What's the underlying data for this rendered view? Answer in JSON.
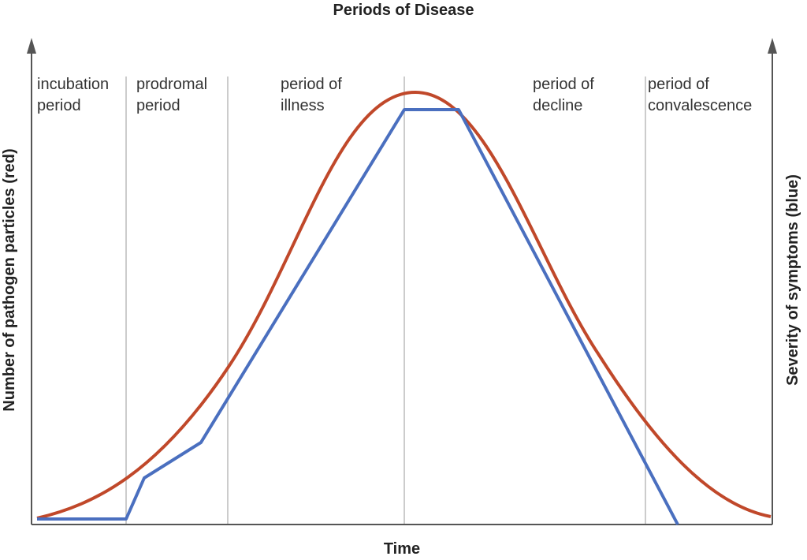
{
  "title": "Periods of Disease",
  "y_axis_left": "Number of pathogen particles (red)",
  "y_axis_right": "Severity of symptoms (blue)",
  "x_axis": "Time",
  "periods": [
    [
      "incubation",
      "period"
    ],
    [
      "prodromal",
      "period"
    ],
    [
      "period of",
      "illness"
    ],
    [
      "period of",
      "decline"
    ],
    [
      "period of",
      "convalescence"
    ]
  ]
}
